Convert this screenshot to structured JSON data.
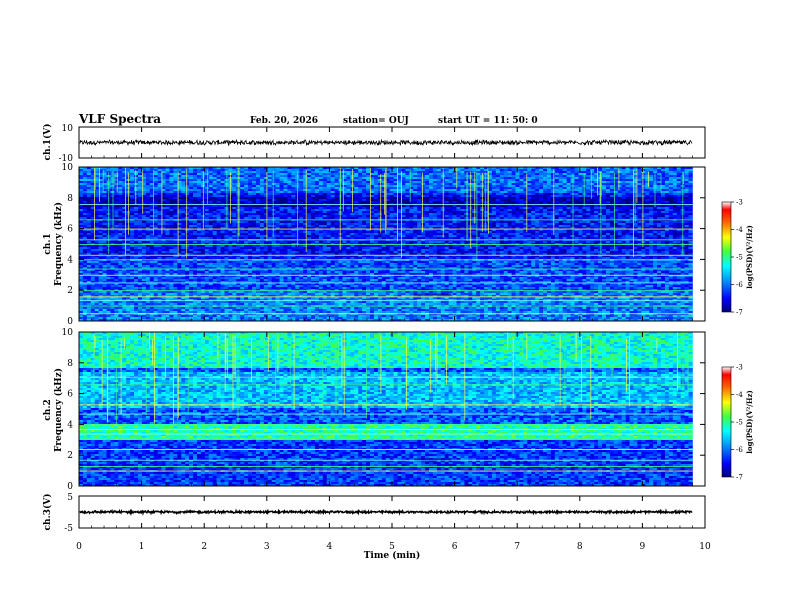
{
  "header": {
    "title": "VLF Spectra",
    "date": "Feb. 20, 2026",
    "station": "station= OUJ",
    "start": "start  UT  =   11: 50: 0"
  },
  "chart_data": {
    "type": "heatmap",
    "xlabel": "Time  (min)",
    "x_ticks": [
      "0",
      "1",
      "2",
      "3",
      "4",
      "5",
      "6",
      "7",
      "8",
      "9",
      "10"
    ],
    "xlim": [
      0,
      10
    ],
    "panels": [
      {
        "id": "ch1-waveform",
        "type": "line",
        "ylabel": "ch.1(V)",
        "ylim": [
          -10,
          10
        ],
        "y_ticks": [
          "10",
          "-10"
        ],
        "signal_center": 0,
        "signal_amplitude": 1.3
      },
      {
        "id": "ch1-spectrogram",
        "type": "heatmap",
        "ylabel_channel": "ch.1",
        "ylabel": "Frequency  (kHz)",
        "ylim": [
          0,
          10
        ],
        "y_ticks": [
          "0",
          "2",
          "4",
          "6",
          "8",
          "10"
        ],
        "colorbar": {
          "label": "log(PSD)(V²/Hz)",
          "range": [
            -7,
            -3
          ],
          "ticks": [
            "-3",
            "-4",
            "-5",
            "-6",
            "-7"
          ]
        },
        "signal_end_min": 9.8,
        "emission_lines_khz": [
          0.5,
          1.0,
          1.35,
          1.6,
          2.0,
          2.5,
          3.0,
          3.4,
          4.0,
          4.3,
          5.0,
          5.3,
          6.0,
          6.6,
          7.6
        ],
        "gap_min": [
          5.35,
          5.95
        ]
      },
      {
        "id": "ch2-spectrogram",
        "type": "heatmap",
        "ylabel_channel": "ch.2",
        "ylabel": "Frequency  (kHz)",
        "ylim": [
          0,
          10
        ],
        "y_ticks": [
          "0",
          "2",
          "4",
          "6",
          "8",
          "10"
        ],
        "colorbar": {
          "label": "log(PSD)(V²/Hz)",
          "range": [
            -7,
            -3
          ],
          "ticks": [
            "-3",
            "-4",
            "-5",
            "-6",
            "-7"
          ]
        },
        "signal_end_min": 9.8,
        "emission_lines_khz": [
          1.0,
          1.3,
          1.7,
          2.4,
          3.1,
          3.4,
          3.7,
          4.0,
          4.7,
          5.3,
          6.6,
          7.1
        ],
        "gap_min": [
          5.35,
          5.95
        ]
      },
      {
        "id": "ch3-waveform",
        "type": "line",
        "ylabel": "ch.3(V)",
        "ylim": [
          -5,
          5
        ],
        "y_ticks": [
          "5",
          "0",
          "-5"
        ],
        "signal_center": 0,
        "signal_amplitude": 0.3
      }
    ]
  }
}
